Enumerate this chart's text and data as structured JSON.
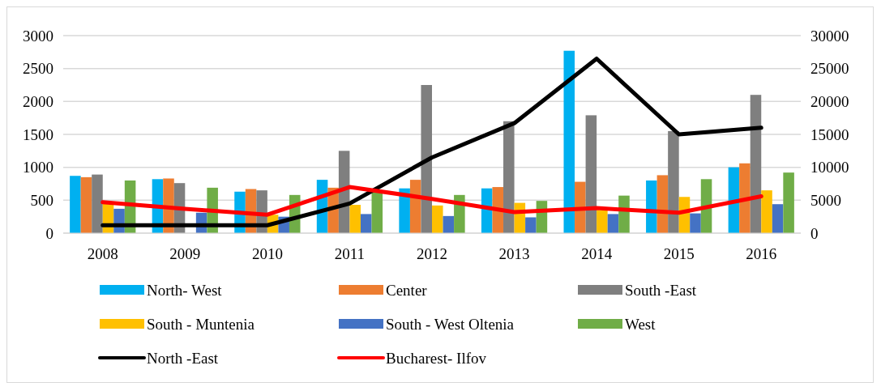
{
  "chart_data": {
    "type": "bar",
    "categories": [
      "2008",
      "2009",
      "2010",
      "2011",
      "2012",
      "2013",
      "2014",
      "2015",
      "2016"
    ],
    "ylim": [
      0,
      3000
    ],
    "yticks": [
      0,
      500,
      1000,
      1500,
      2000,
      2500,
      3000
    ],
    "y2lim": [
      0,
      30000
    ],
    "y2ticks": [
      0,
      5000,
      10000,
      15000,
      20000,
      25000,
      30000
    ],
    "grid": "y",
    "legend": "bottom",
    "series": [
      {
        "name": "North- West",
        "color": "#00b0f0",
        "values": [
          870,
          820,
          630,
          810,
          680,
          680,
          2770,
          800,
          1000
        ]
      },
      {
        "name": "Center",
        "color": "#ed7d31",
        "values": [
          850,
          830,
          670,
          690,
          810,
          700,
          780,
          880,
          1060
        ]
      },
      {
        "name": "South -East",
        "color": "#7f7f7f",
        "values": [
          890,
          760,
          650,
          1250,
          2250,
          1700,
          1790,
          1550,
          2100
        ]
      },
      {
        "name": "South - Muntenia",
        "color": "#ffc000",
        "values": [
          450,
          null,
          280,
          430,
          420,
          460,
          350,
          550,
          650
        ]
      },
      {
        "name": "South - West Oltenia",
        "color": "#4472c4",
        "values": [
          370,
          310,
          250,
          290,
          260,
          240,
          290,
          300,
          440
        ]
      },
      {
        "name": "West",
        "color": "#70ad47",
        "values": [
          800,
          690,
          580,
          640,
          580,
          490,
          570,
          820,
          920
        ]
      },
      {
        "name": "North -East",
        "type": "line",
        "axis": "y2",
        "color": "#000000",
        "values": [
          1200,
          1200,
          1200,
          4500,
          11500,
          16700,
          26500,
          15000,
          16000
        ]
      },
      {
        "name": "Bucharest- Ilfov",
        "type": "line",
        "axis": "y2",
        "color": "#ff0000",
        "values": [
          4700,
          3700,
          2800,
          7000,
          5200,
          3200,
          3800,
          3100,
          5600
        ]
      }
    ]
  }
}
